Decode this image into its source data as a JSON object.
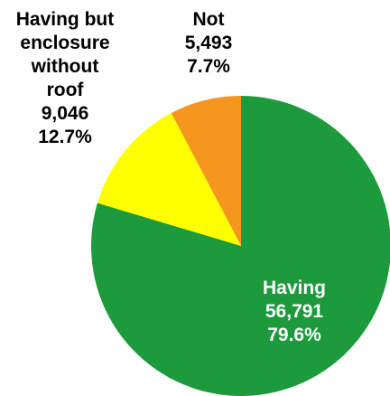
{
  "chart_data": {
    "type": "pie",
    "start_angle_deg": 0,
    "direction": "clockwise",
    "slices": [
      {
        "label": "Having",
        "value": 56791,
        "value_text": "56,791",
        "percent_text": "79.6%",
        "color": "#1c9a3c",
        "text_color": "#ffffff",
        "label_lines": [
          "Having",
          "56,791",
          "79.6%"
        ]
      },
      {
        "label": "Having but enclosure without roof",
        "value": 9046,
        "value_text": "9,046",
        "percent_text": "12.7%",
        "color": "#ffff00",
        "text_color": "#000000",
        "label_lines": [
          "Having but",
          "enclosure",
          "without",
          "roof",
          "9,046",
          "12.7%"
        ]
      },
      {
        "label": "Not",
        "value": 5493,
        "value_text": "5,493",
        "percent_text": "7.7%",
        "color": "#f5961e",
        "text_color": "#000000",
        "label_lines": [
          "Not",
          "5,493",
          "7.7%"
        ]
      }
    ]
  }
}
